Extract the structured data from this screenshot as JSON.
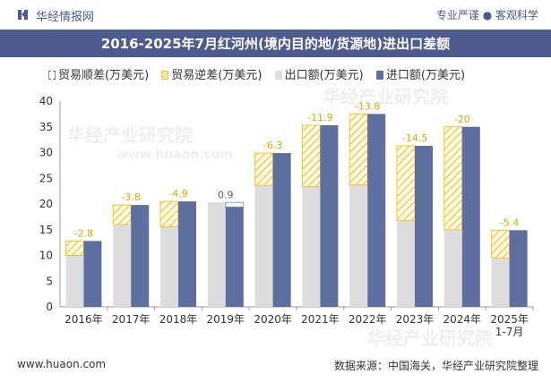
{
  "header": {
    "brand": "华经情报网",
    "tagline": "专业严谨 ● 客观科学",
    "title": "2016-2025年7月红河州(境内目的地/货源地)进出口差额"
  },
  "watermarks": [
    "华经产业研究院",
    "www.huaon.com"
  ],
  "footer": {
    "left": "www.huaon.com",
    "right": "数据来源：中国海关，华经产业研究院整理"
  },
  "colors": {
    "header_bg": "#4d5b8e",
    "import": "#5e6e9e",
    "export": "#dddddd",
    "deficit_hatch": "#f4c430",
    "surplus": "#5a7ab8"
  },
  "chart_data": {
    "type": "bar",
    "categories": [
      "2016年",
      "2017年",
      "2018年",
      "2019年",
      "2020年",
      "2021年",
      "2022年",
      "2023年",
      "2024年",
      "2025年\n1-7月"
    ],
    "series": [
      {
        "name": "出口额(万美元)",
        "values": [
          10.0,
          16.0,
          15.6,
          20.3,
          23.6,
          23.4,
          23.7,
          16.8,
          15.0,
          9.5
        ]
      },
      {
        "name": "进口额(万美元)",
        "values": [
          12.8,
          19.8,
          20.5,
          19.4,
          29.9,
          35.3,
          37.5,
          31.3,
          35.0,
          14.9
        ]
      }
    ],
    "balance": {
      "surplus_name": "贸易顺差(万美元)",
      "deficit_name": "贸易逆差(万美元)",
      "values": [
        -2.8,
        -3.8,
        -4.9,
        0.9,
        -6.3,
        -11.9,
        -13.8,
        -14.5,
        -20,
        -5.4
      ],
      "labels": [
        "-2.8",
        "-3.8",
        "-4.9",
        "0.9",
        "-6.3",
        "-11.9",
        "-13.8",
        "-14.5",
        "-20",
        "-5.4"
      ]
    },
    "ylim": [
      0,
      40
    ],
    "yticks": [
      0,
      5,
      10,
      15,
      20,
      25,
      30,
      35,
      40
    ],
    "legend_position": "top-left",
    "xlabel": "",
    "ylabel": ""
  }
}
